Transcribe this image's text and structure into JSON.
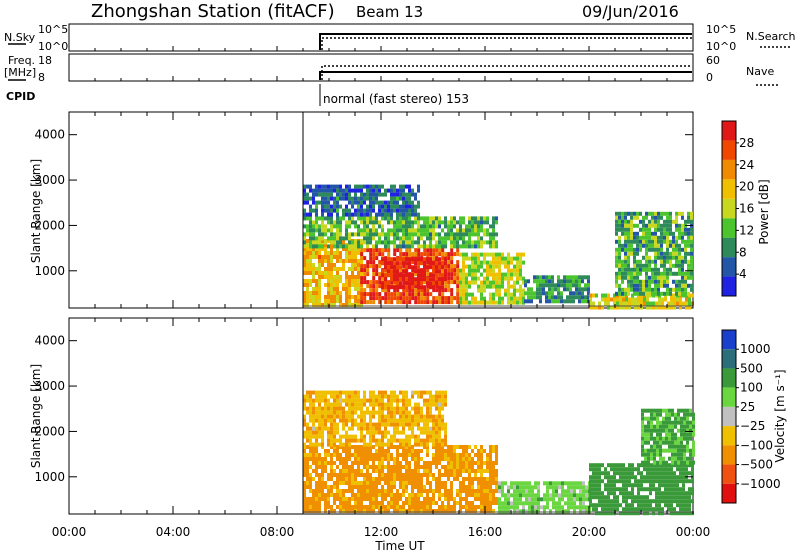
{
  "header": {
    "station": "Zhongshan Station (fitACF)",
    "beam": "Beam 13",
    "date": "09/Jun/2016"
  },
  "summary": {
    "nsky_label": "N.Sky",
    "nsky_ticks": [
      "10^5",
      "10^0"
    ],
    "nsearch_label": "N.Search",
    "nsearch_ticks": [
      "10^5",
      "10^0"
    ],
    "freq_label": "Freq.",
    "freq_unit": "[MHz]",
    "freq_ticks": [
      "18",
      "8"
    ],
    "nave_label": "Nave",
    "nave_ticks": [
      "60",
      "0"
    ],
    "cpid_label": "CPID",
    "cpid_text": "normal (fast stereo) 153"
  },
  "chart_data": [
    {
      "type": "heatmap",
      "name": "power",
      "ylabel": "Slant Range [km]",
      "ylim": [
        180,
        4500
      ],
      "yticks": [
        "1000",
        "2000",
        "3000",
        "4000"
      ],
      "ytick_values": [
        1000,
        2000,
        3000,
        4000
      ],
      "xlim": [
        0,
        24
      ],
      "colorbar": {
        "label": "Power [dB]",
        "ticks": [
          "4",
          "8",
          "12",
          "16",
          "20",
          "24",
          "28"
        ],
        "tick_values": [
          4,
          8,
          12,
          16,
          20,
          24,
          28
        ],
        "range": [
          0,
          32
        ],
        "colors": [
          "#1f22e0",
          "#2456a8",
          "#2e8a5a",
          "#4cc42e",
          "#c8d820",
          "#f0c000",
          "#f08a00",
          "#f04800",
          "#e01818"
        ]
      },
      "data_start_hour": 9.0,
      "regions": [
        {
          "t0": 9.0,
          "t1": 11.2,
          "r0": 250,
          "r1": 1700,
          "value": 20
        },
        {
          "t0": 11.2,
          "t1": 15.0,
          "r0": 300,
          "r1": 1500,
          "value": 27
        },
        {
          "t0": 12.0,
          "t1": 14.5,
          "r0": 600,
          "r1": 1300,
          "value": 30
        },
        {
          "t0": 9.0,
          "t1": 16.5,
          "r0": 1500,
          "r1": 2200,
          "value": 12
        },
        {
          "t0": 15.0,
          "t1": 17.5,
          "r0": 300,
          "r1": 1400,
          "value": 16
        },
        {
          "t0": 17.5,
          "t1": 20.0,
          "r0": 300,
          "r1": 900,
          "value": 9
        },
        {
          "t0": 20.0,
          "t1": 24.0,
          "r0": 200,
          "r1": 500,
          "value": 18
        },
        {
          "t0": 21.0,
          "t1": 24.0,
          "r0": 500,
          "r1": 2300,
          "value": 11
        },
        {
          "t0": 9.0,
          "t1": 13.5,
          "r0": 2200,
          "r1": 2900,
          "value": 6
        }
      ]
    },
    {
      "type": "heatmap",
      "name": "velocity",
      "ylabel": "Slant Range [km]",
      "xlabel": "Time UT",
      "ylim": [
        180,
        4500
      ],
      "yticks": [
        "1000",
        "2000",
        "3000",
        "4000"
      ],
      "ytick_values": [
        1000,
        2000,
        3000,
        4000
      ],
      "xlim": [
        0,
        24
      ],
      "xticks": [
        "00:00",
        "04:00",
        "08:00",
        "12:00",
        "16:00",
        "20:00",
        "00:00"
      ],
      "xtick_values": [
        0,
        4,
        8,
        12,
        16,
        20,
        24
      ],
      "colorbar": {
        "label": "Velocity [m s⁻¹]",
        "ticks": [
          "1000",
          "500",
          "100",
          "25",
          "−25",
          "−100",
          "−500",
          "−1000"
        ],
        "colors": [
          "#1a3fcc",
          "#2b6e7a",
          "#3a9a3a",
          "#6ad640",
          "#c0c0c0",
          "#f0c000",
          "#f09000",
          "#f05010",
          "#e01010"
        ]
      },
      "data_start_hour": 9.0,
      "regions": [
        {
          "t0": 9.0,
          "t1": 16.5,
          "r0": 250,
          "r1": 1700,
          "value": -150
        },
        {
          "t0": 9.0,
          "t1": 14.5,
          "r0": 1700,
          "r1": 2900,
          "value": -80
        },
        {
          "t0": 16.5,
          "t1": 20.0,
          "r0": 200,
          "r1": 900,
          "value": 60
        },
        {
          "t0": 20.0,
          "t1": 24.0,
          "r0": 200,
          "r1": 1300,
          "value": 300
        },
        {
          "t0": 22.0,
          "t1": 24.0,
          "r0": 1300,
          "r1": 2500,
          "value": 120
        }
      ]
    }
  ]
}
